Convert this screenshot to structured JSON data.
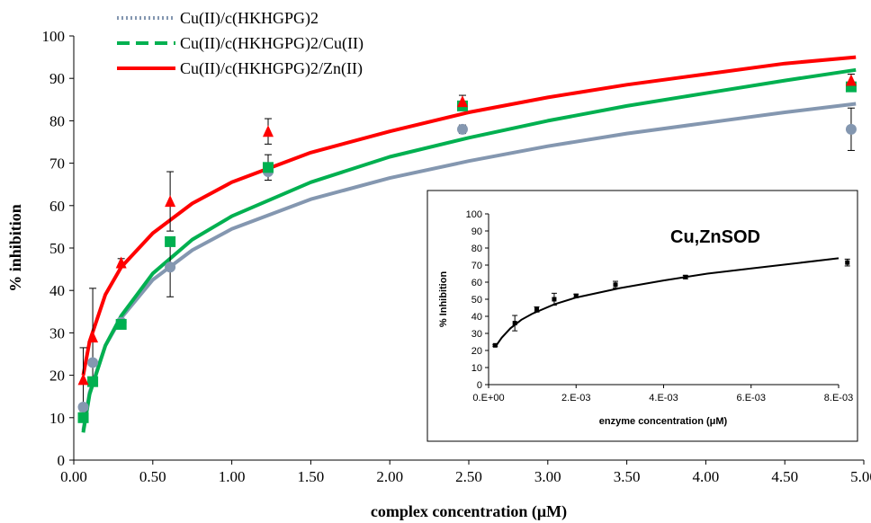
{
  "chart_data": [
    {
      "type": "line",
      "xlabel": "complex concentration (μM)",
      "ylabel": "% inhibition",
      "xlim": [
        0,
        5
      ],
      "ylim": [
        0,
        100
      ],
      "xticks": [
        "0.00",
        "0.50",
        "1.00",
        "1.50",
        "2.00",
        "2.50",
        "3.00",
        "3.50",
        "4.00",
        "4.50",
        "5.00"
      ],
      "yticks": [
        "0",
        "10",
        "20",
        "30",
        "40",
        "50",
        "60",
        "70",
        "80",
        "90",
        "100"
      ],
      "grid": false,
      "legend_position": "top-left",
      "series": [
        {
          "name": "Cu(II)/c(HKHGPG)2",
          "color": "#8497B0",
          "line_style": "dotted",
          "marker": "circle",
          "x": [
            0.06,
            0.12,
            0.3,
            0.61,
            1.23,
            2.46,
            4.92
          ],
          "y": [
            12.5,
            23,
            32.5,
            45.5,
            68,
            78,
            78
          ],
          "error": [
            null,
            null,
            null,
            7,
            null,
            1,
            5
          ],
          "fit": [
            [
              0.06,
              7
            ],
            [
              0.1,
              16
            ],
            [
              0.2,
              27
            ],
            [
              0.3,
              33.5
            ],
            [
              0.5,
              42.5
            ],
            [
              0.75,
              49.5
            ],
            [
              1,
              54.5
            ],
            [
              1.5,
              61.5
            ],
            [
              2,
              66.5
            ],
            [
              2.5,
              70.5
            ],
            [
              3,
              74
            ],
            [
              3.5,
              77
            ],
            [
              4,
              79.5
            ],
            [
              4.5,
              82
            ],
            [
              4.95,
              84
            ]
          ]
        },
        {
          "name": "Cu(II)/c(HKHGPG)2/Cu(II)",
          "color": "#00B050",
          "line_style": "dashed",
          "marker": "square",
          "x": [
            0.06,
            0.12,
            0.3,
            0.61,
            1.23,
            2.46,
            4.92
          ],
          "y": [
            10,
            18.5,
            32,
            51.5,
            69,
            83.5,
            88
          ],
          "error": [
            null,
            null,
            null,
            null,
            3,
            null,
            null
          ],
          "fit": [
            [
              0.06,
              6.5
            ],
            [
              0.1,
              15.5
            ],
            [
              0.2,
              27
            ],
            [
              0.3,
              34
            ],
            [
              0.5,
              44
            ],
            [
              0.75,
              52
            ],
            [
              1,
              57.5
            ],
            [
              1.5,
              65.5
            ],
            [
              2,
              71.5
            ],
            [
              2.5,
              76
            ],
            [
              3,
              80
            ],
            [
              3.5,
              83.5
            ],
            [
              4,
              86.5
            ],
            [
              4.5,
              89.5
            ],
            [
              4.95,
              92
            ]
          ]
        },
        {
          "name": "Cu(II)/c(HKHGPG)2/Zn(II)",
          "color": "#FF0000",
          "line_style": "solid",
          "marker": "triangle",
          "x": [
            0.06,
            0.12,
            0.3,
            0.61,
            1.23,
            2.46,
            4.92
          ],
          "y": [
            19,
            29,
            46.5,
            61,
            77.5,
            84.5,
            89.5
          ],
          "error": [
            7.5,
            11.5,
            1,
            7,
            3,
            1.5,
            1.5
          ],
          "fit": [
            [
              0.06,
              20
            ],
            [
              0.1,
              28
            ],
            [
              0.2,
              39
            ],
            [
              0.3,
              45.5
            ],
            [
              0.5,
              53.5
            ],
            [
              0.75,
              60.5
            ],
            [
              1,
              65.5
            ],
            [
              1.5,
              72.5
            ],
            [
              2,
              77.5
            ],
            [
              2.5,
              82
            ],
            [
              3,
              85.5
            ],
            [
              3.5,
              88.5
            ],
            [
              4,
              91
            ],
            [
              4.5,
              93.5
            ],
            [
              4.95,
              95
            ]
          ]
        }
      ]
    },
    {
      "type": "line",
      "title": "Cu,ZnSOD",
      "xlabel": "enzyme concentration (μM)",
      "ylabel": "% Inhibition",
      "xlim": [
        0,
        0.008
      ],
      "ylim": [
        0,
        100
      ],
      "xticks": [
        "0.E+00",
        "2.E-03",
        "4.E-03",
        "6.E-03",
        "8.E-03"
      ],
      "yticks": [
        "0",
        "10",
        "20",
        "30",
        "40",
        "50",
        "60",
        "70",
        "80",
        "90",
        "100"
      ],
      "grid": false,
      "position": "lower-right inset",
      "series": [
        {
          "color": "#000000",
          "marker": "square",
          "x": [
            0.00015,
            0.0006,
            0.0011,
            0.0015,
            0.002,
            0.0029,
            0.0045,
            0.0082
          ],
          "y": [
            23,
            36,
            44,
            50,
            52,
            58.5,
            63,
            71.5
          ],
          "error": [
            0.5,
            4.5,
            1.5,
            3.5,
            1,
            2,
            1,
            2
          ],
          "fit": [
            [
              0.00015,
              22
            ],
            [
              0.0003,
              27.5
            ],
            [
              0.0005,
              33
            ],
            [
              0.00075,
              38
            ],
            [
              0.001,
              41.5
            ],
            [
              0.0015,
              47
            ],
            [
              0.002,
              51
            ],
            [
              0.003,
              56.5
            ],
            [
              0.004,
              61
            ],
            [
              0.005,
              65
            ],
            [
              0.006,
              68
            ],
            [
              0.007,
              71
            ],
            [
              0.008,
              74
            ]
          ]
        }
      ]
    }
  ]
}
